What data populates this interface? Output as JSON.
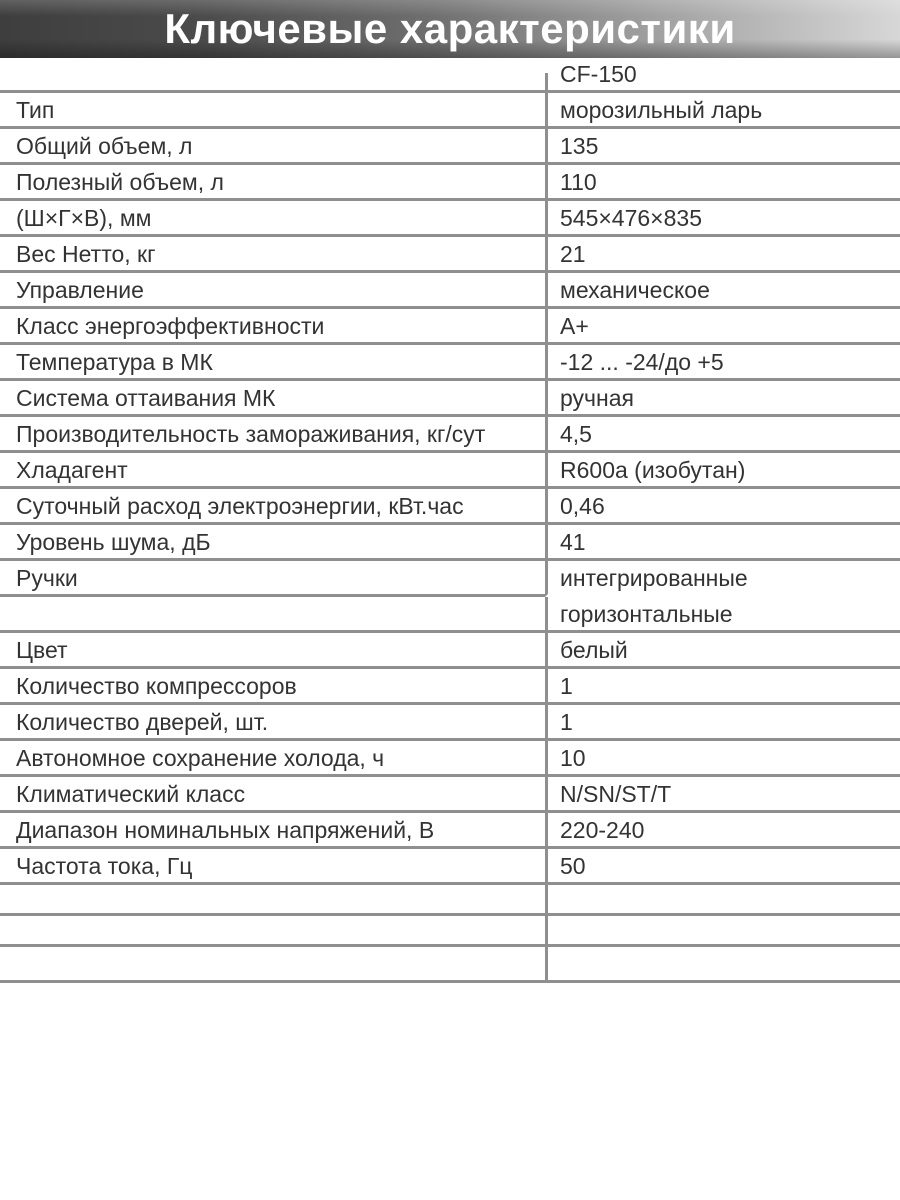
{
  "title": "Ключевые характеристики",
  "table": {
    "model_header": "CF-150",
    "rows": [
      {
        "label": "Тип",
        "value": "морозильный ларь"
      },
      {
        "label": "Общий объем, л",
        "value": "135"
      },
      {
        "label": "Полезный объем, л",
        "value": "110"
      },
      {
        "label": "(Ш×Г×В), мм",
        "value": "545×476×835"
      },
      {
        "label": "Вес Нетто, кг",
        "value": "21"
      },
      {
        "label": "Управление",
        "value": "механическое"
      },
      {
        "label": "Класс энергоэффективности",
        "value": "A+"
      },
      {
        "label": "Температура в МК",
        "value": "-12 ... -24/до +5"
      },
      {
        "label": "Система оттаивания МК",
        "value": "ручная"
      },
      {
        "label": "Производительность замораживания, кг/сут",
        "value": "4,5"
      },
      {
        "label": "Хладагент",
        "value": "R600a (изобутан)"
      },
      {
        "label": "Суточный расход электроэнергии, кВт.час",
        "value": "0,46"
      },
      {
        "label": "Уровень шума, дБ",
        "value": "41"
      },
      {
        "label": "Ручки",
        "value": "интегрированные",
        "merge_below": true
      },
      {
        "label": "",
        "value": "горизонтальные"
      },
      {
        "label": "Цвет",
        "value": "белый"
      },
      {
        "label": "Количество компрессоров",
        "value": "1"
      },
      {
        "label": "Количество дверей, шт.",
        "value": "1"
      },
      {
        "label": "Автономное сохранение холода, ч",
        "value": "10"
      },
      {
        "label": "Климатический класс",
        "value": "N/SN/ST/T"
      },
      {
        "label": "Диапазон номинальных напряжений, В",
        "value": "220-240"
      },
      {
        "label": "Частота тока, Гц",
        "value": "50"
      },
      {
        "label": "",
        "value": "",
        "empty": true
      },
      {
        "label": "",
        "value": "",
        "empty": true
      },
      {
        "label": "",
        "value": "",
        "empty": true
      }
    ]
  },
  "colors": {
    "line": "#8f8f8f",
    "text": "#333333",
    "banner_dark": "#3e3e3e",
    "banner_light": "#d7d7d7",
    "title_text": "#ffffff"
  }
}
